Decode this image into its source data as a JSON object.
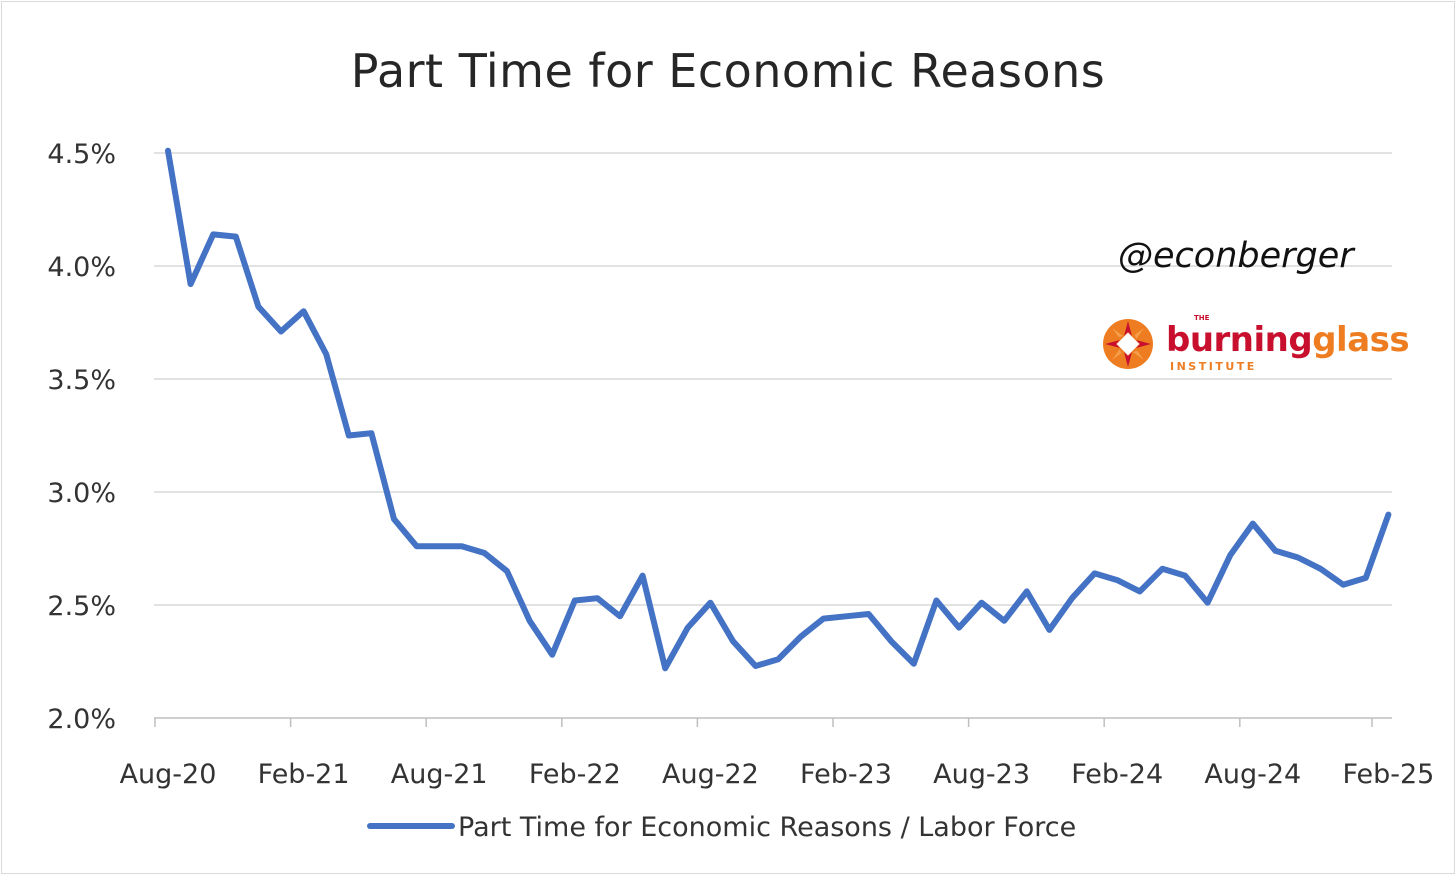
{
  "chart_data": {
    "type": "line",
    "title": "Part Time for Economic Reasons",
    "xlabel": "",
    "ylabel": "",
    "ylim": [
      0.02,
      0.045
    ],
    "y_ticks": [
      "2.0%",
      "2.5%",
      "3.0%",
      "3.5%",
      "4.0%",
      "4.5%"
    ],
    "y_tick_values": [
      0.02,
      0.025,
      0.03,
      0.035,
      0.04,
      0.045
    ],
    "x_ticks": [
      "Aug-20",
      "Feb-21",
      "Aug-21",
      "Feb-22",
      "Aug-22",
      "Feb-23",
      "Aug-23",
      "Feb-24",
      "Aug-24",
      "Feb-25"
    ],
    "grid": true,
    "legend_position": "bottom",
    "x": [
      "Aug-20",
      "Sep-20",
      "Oct-20",
      "Nov-20",
      "Dec-20",
      "Jan-21",
      "Feb-21",
      "Mar-21",
      "Apr-21",
      "May-21",
      "Jun-21",
      "Jul-21",
      "Aug-21",
      "Sep-21",
      "Oct-21",
      "Nov-21",
      "Dec-21",
      "Jan-22",
      "Feb-22",
      "Mar-22",
      "Apr-22",
      "May-22",
      "Jun-22",
      "Jul-22",
      "Aug-22",
      "Sep-22",
      "Oct-22",
      "Nov-22",
      "Dec-22",
      "Jan-23",
      "Feb-23",
      "Mar-23",
      "Apr-23",
      "May-23",
      "Jun-23",
      "Jul-23",
      "Aug-23",
      "Sep-23",
      "Oct-23",
      "Nov-23",
      "Dec-23",
      "Jan-24",
      "Feb-24",
      "Mar-24",
      "Apr-24",
      "May-24",
      "Jun-24",
      "Jul-24",
      "Aug-24",
      "Sep-24",
      "Oct-24",
      "Nov-24",
      "Dec-24",
      "Jan-25",
      "Feb-25"
    ],
    "series": [
      {
        "name": "Part Time for Economic Reasons / Labor Force",
        "color": "#4472c4",
        "values": [
          0.0452,
          0.0392,
          0.0414,
          0.0413,
          0.0382,
          0.0371,
          0.038,
          0.0361,
          0.0325,
          0.0326,
          0.0288,
          0.0276,
          0.0276,
          0.0276,
          0.0273,
          0.0265,
          0.0243,
          0.0228,
          0.0252,
          0.0253,
          0.0245,
          0.0263,
          0.0222,
          0.024,
          0.0251,
          0.0234,
          0.0223,
          0.0226,
          0.0236,
          0.0244,
          0.0245,
          0.0246,
          0.0234,
          0.0224,
          0.0252,
          0.024,
          0.0251,
          0.0243,
          0.0256,
          0.0239,
          0.0253,
          0.0264,
          0.0261,
          0.0256,
          0.0266,
          0.0263,
          0.0251,
          0.0272,
          0.0286,
          0.0274,
          0.0271,
          0.0266,
          0.0259,
          0.0262,
          0.029
        ]
      }
    ]
  },
  "watermark": {
    "handle": "@econberger"
  },
  "logo": {
    "the": "THE",
    "word1": "burning",
    "word2": "glass",
    "institute": "INSTITUTE"
  }
}
